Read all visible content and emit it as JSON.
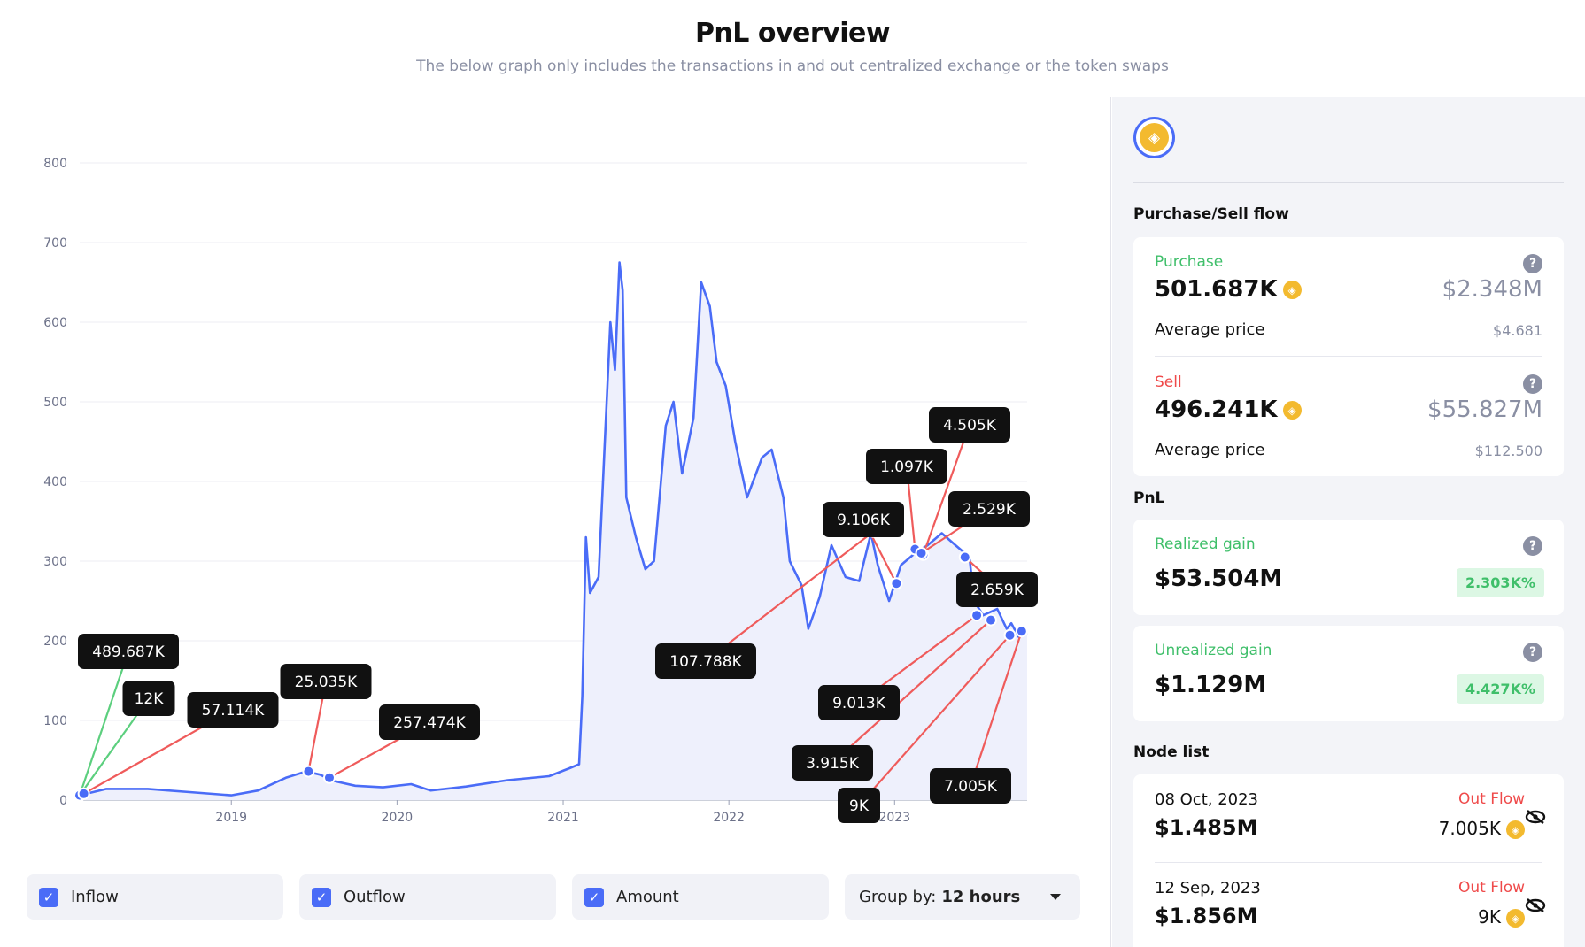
{
  "header": {
    "title": "PnL overview",
    "subtitle": "The below graph only includes the transactions in and out centralized exchange or the token swaps"
  },
  "chart_data": {
    "type": "line",
    "ylim": [
      0,
      800
    ],
    "yticks": [
      0,
      100,
      200,
      300,
      400,
      500,
      600,
      700,
      800
    ],
    "x_range": [
      "2018-02-01",
      "2023-10-20"
    ],
    "xticks": [
      "2019",
      "2020",
      "2021",
      "2022",
      "2023"
    ],
    "series": [
      {
        "points": [
          [
            "2018-02-01",
            6
          ],
          [
            "2018-04-01",
            14
          ],
          [
            "2018-07-01",
            14
          ],
          [
            "2018-10-01",
            10
          ],
          [
            "2019-01-01",
            6
          ],
          [
            "2019-03-01",
            12
          ],
          [
            "2019-05-01",
            28
          ],
          [
            "2019-06-15",
            36
          ],
          [
            "2019-07-15",
            32
          ],
          [
            "2019-08-15",
            24
          ],
          [
            "2019-10-01",
            18
          ],
          [
            "2019-12-01",
            16
          ],
          [
            "2020-02-01",
            20
          ],
          [
            "2020-03-15",
            12
          ],
          [
            "2020-06-01",
            17
          ],
          [
            "2020-09-01",
            25
          ],
          [
            "2020-12-01",
            30
          ],
          [
            "2021-01-15",
            40
          ],
          [
            "2021-02-05",
            45
          ],
          [
            "2021-02-12",
            130
          ],
          [
            "2021-02-20",
            330
          ],
          [
            "2021-03-01",
            260
          ],
          [
            "2021-03-20",
            280
          ],
          [
            "2021-04-15",
            600
          ],
          [
            "2021-04-25",
            540
          ],
          [
            "2021-05-05",
            675
          ],
          [
            "2021-05-12",
            640
          ],
          [
            "2021-05-20",
            380
          ],
          [
            "2021-06-10",
            330
          ],
          [
            "2021-07-01",
            290
          ],
          [
            "2021-07-20",
            300
          ],
          [
            "2021-08-15",
            470
          ],
          [
            "2021-09-01",
            500
          ],
          [
            "2021-09-20",
            410
          ],
          [
            "2021-10-15",
            480
          ],
          [
            "2021-11-01",
            650
          ],
          [
            "2021-11-20",
            620
          ],
          [
            "2021-12-05",
            550
          ],
          [
            "2021-12-25",
            520
          ],
          [
            "2022-01-15",
            450
          ],
          [
            "2022-02-10",
            380
          ],
          [
            "2022-03-15",
            430
          ],
          [
            "2022-04-05",
            440
          ],
          [
            "2022-05-01",
            380
          ],
          [
            "2022-05-15",
            300
          ],
          [
            "2022-06-10",
            270
          ],
          [
            "2022-06-25",
            215
          ],
          [
            "2022-07-20",
            255
          ],
          [
            "2022-08-15",
            320
          ],
          [
            "2022-09-15",
            280
          ],
          [
            "2022-10-15",
            275
          ],
          [
            "2022-11-10",
            335
          ],
          [
            "2022-11-25",
            295
          ],
          [
            "2022-12-20",
            250
          ],
          [
            "2023-01-15",
            295
          ],
          [
            "2023-02-15",
            310
          ],
          [
            "2023-03-15",
            320
          ],
          [
            "2023-04-15",
            335
          ],
          [
            "2023-05-15",
            320
          ],
          [
            "2023-06-15",
            305
          ],
          [
            "2023-06-25",
            250
          ],
          [
            "2023-07-15",
            232
          ],
          [
            "2023-08-15",
            240
          ],
          [
            "2023-09-05",
            215
          ],
          [
            "2023-09-15",
            222
          ],
          [
            "2023-10-01",
            205
          ],
          [
            "2023-10-20",
            210
          ]
        ]
      }
    ],
    "annotations": [
      {
        "label": "489.687K",
        "kind": "inflow",
        "date": "2018-02-01",
        "value": 6
      },
      {
        "label": "12K",
        "kind": "inflow",
        "date": "2018-02-01",
        "value": 6
      },
      {
        "label": "57.114K",
        "kind": "outflow",
        "date": "2018-02-10",
        "value": 8
      },
      {
        "label": "25.035K",
        "kind": "outflow",
        "date": "2019-06-20",
        "value": 36
      },
      {
        "label": "257.474K",
        "kind": "outflow",
        "date": "2019-08-05",
        "value": 28
      },
      {
        "label": "107.788K",
        "kind": "outflow",
        "date": "2022-11-15",
        "value": 337
      },
      {
        "label": "9.106K",
        "kind": "outflow",
        "date": "2023-01-05",
        "value": 272
      },
      {
        "label": "1.097K",
        "kind": "outflow",
        "date": "2023-02-15",
        "value": 315
      },
      {
        "label": "4.505K",
        "kind": "outflow",
        "date": "2023-03-05",
        "value": 308
      },
      {
        "label": "2.529K",
        "kind": "outflow",
        "date": "2023-03-01",
        "value": 310
      },
      {
        "label": "2.659K",
        "kind": "outflow",
        "date": "2023-06-05",
        "value": 305
      },
      {
        "label": "9.013K",
        "kind": "outflow",
        "date": "2023-07-01",
        "value": 232
      },
      {
        "label": "3.915K",
        "kind": "outflow",
        "date": "2023-08-01",
        "value": 226
      },
      {
        "label": "9K",
        "kind": "outflow",
        "date": "2023-09-12",
        "value": 207
      },
      {
        "label": "7.005K",
        "kind": "outflow",
        "date": "2023-10-08",
        "value": 212
      }
    ]
  },
  "controls": {
    "inflow": "Inflow",
    "outflow": "Outflow",
    "amount": "Amount",
    "groupby_label": "Group by:",
    "groupby_value": "12 hours"
  },
  "sidebar": {
    "flow_title": "Purchase/Sell flow",
    "purchase": {
      "label": "Purchase",
      "amount": "501.687K",
      "usd": "$2.348M",
      "avg_label": "Average price",
      "avg_price": "$4.681"
    },
    "sell": {
      "label": "Sell",
      "amount": "496.241K",
      "usd": "$55.827M",
      "avg_label": "Average price",
      "avg_price": "$112.500"
    },
    "pnl_title": "PnL",
    "realized": {
      "label": "Realized gain",
      "value": "$53.504M",
      "pct": "2.303K%"
    },
    "unrealized": {
      "label": "Unrealized gain",
      "value": "$1.129M",
      "pct": "4.427K%"
    },
    "node_title": "Node list",
    "nodes": [
      {
        "date": "08 Oct, 2023",
        "type": "Out Flow",
        "usd": "$1.485M",
        "amount": "7.005K"
      },
      {
        "date": "12 Sep, 2023",
        "type": "Out Flow",
        "usd": "$1.856M",
        "amount": "9K"
      }
    ]
  },
  "colors": {
    "line": "#4a6cf7",
    "fill": "#eef0fc",
    "inflow": "#5ccf7e",
    "outflow": "#ef5b5b",
    "tooltip": "#111111",
    "coin": "#f3ba2f"
  }
}
